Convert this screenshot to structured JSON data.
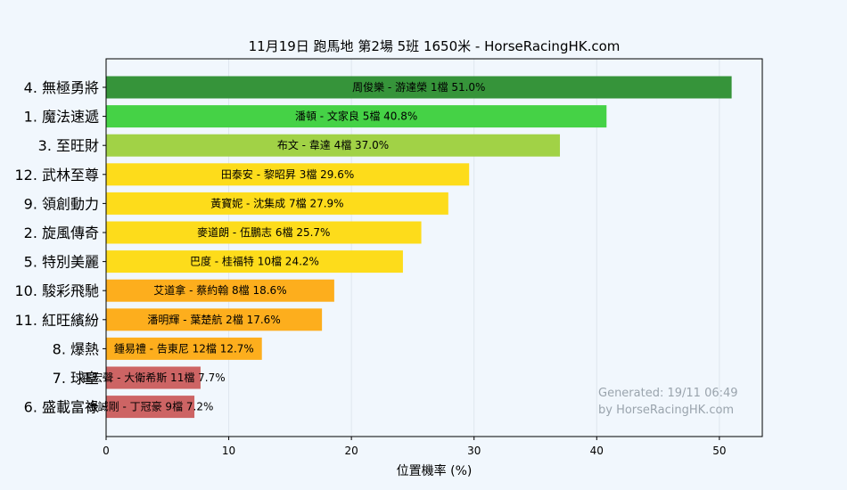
{
  "chart_data": {
    "type": "bar",
    "orientation": "horizontal",
    "title": "11月19日  跑馬地  第2場  5班  1650米 - HorseRacingHK.com",
    "xlabel": "位置機率 (%)",
    "ylabel": "",
    "xlim": [
      0,
      53.5
    ],
    "xticks": [
      0,
      10,
      20,
      30,
      40,
      50
    ],
    "grid": true,
    "watermark": [
      "Generated: 19/11 06:49",
      "by HorseRacingHK.com"
    ],
    "bars": [
      {
        "category": "4. 無極勇將",
        "label": "周俊樂 - 游達榮 1檔  51.0%",
        "value": 51.0,
        "color": "#36943a"
      },
      {
        "category": "1. 魔法速遞",
        "label": "潘頓 - 文家良 5檔  40.8%",
        "value": 40.8,
        "color": "#45d246"
      },
      {
        "category": "3. 至旺財",
        "label": "布文 - 韋達 4檔  37.0%",
        "value": 37.0,
        "color": "#a1d246"
      },
      {
        "category": "12. 武林至尊",
        "label": "田泰安 - 黎昭昇 3檔  29.6%",
        "value": 29.6,
        "color": "#fddc1b"
      },
      {
        "category": "9. 領創動力",
        "label": "黃寶妮 - 沈集成 7檔  27.9%",
        "value": 27.9,
        "color": "#fddc1b"
      },
      {
        "category": "2. 旋風傳奇",
        "label": "麥道朗 - 伍鵬志 6檔  25.7%",
        "value": 25.7,
        "color": "#fddc1b"
      },
      {
        "category": "5. 特別美麗",
        "label": "巴度 - 桂福特 10檔  24.2%",
        "value": 24.2,
        "color": "#fddc1b"
      },
      {
        "category": "10. 駿彩飛馳",
        "label": "艾道拿 - 蔡約翰 8檔  18.6%",
        "value": 18.6,
        "color": "#fdae1d"
      },
      {
        "category": "11. 紅旺繽紛",
        "label": "潘明輝 - 葉楚航 2檔  17.6%",
        "value": 17.6,
        "color": "#fdae1d"
      },
      {
        "category": "8. 爆熱",
        "label": "鍾易禮 - 告東尼 12檔  12.7%",
        "value": 12.7,
        "color": "#fdae1d"
      },
      {
        "category": "7. 球皇",
        "label": "霍宏聲 - 大衛希斯 11檔  7.7%",
        "value": 7.7,
        "color": "#cd6464"
      },
      {
        "category": "6. 盛載富祿",
        "label": "金誠剛 - 丁冠豪 9檔  7.2%",
        "value": 7.2,
        "color": "#cd6464"
      }
    ]
  }
}
